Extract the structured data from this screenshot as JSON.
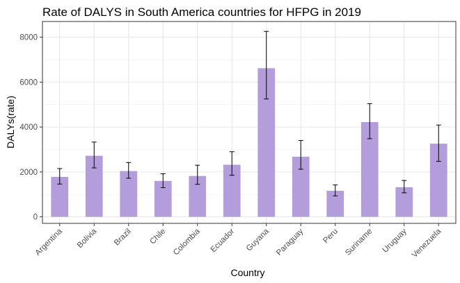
{
  "chart_data": {
    "type": "bar",
    "title": "Rate of DALYS in South America countries for HFPG in 2019",
    "xlabel": "Country",
    "ylabel": "DALYs(rate)",
    "categories": [
      "Argentina",
      "Bolivia",
      "Brazil",
      "Chile",
      "Colombia",
      "Ecuador",
      "Guyana",
      "Paraguay",
      "Peru",
      "Suriname",
      "Uruguay",
      "Venezuela"
    ],
    "values": [
      1780,
      2720,
      2040,
      1600,
      1820,
      2320,
      6620,
      2680,
      1160,
      4220,
      1320,
      3260
    ],
    "error_lower": [
      1460,
      2180,
      1720,
      1300,
      1450,
      1850,
      5250,
      2120,
      930,
      3480,
      1070,
      2470
    ],
    "error_upper": [
      2150,
      3330,
      2420,
      1920,
      2300,
      2900,
      8260,
      3400,
      1420,
      5040,
      1620,
      4090
    ],
    "ylim": [
      -290,
      8700
    ],
    "yticks": [
      0,
      2000,
      4000,
      6000,
      8000
    ],
    "grid": true,
    "bar_color": "#b39ddb",
    "error_bar_color": "#000000"
  }
}
